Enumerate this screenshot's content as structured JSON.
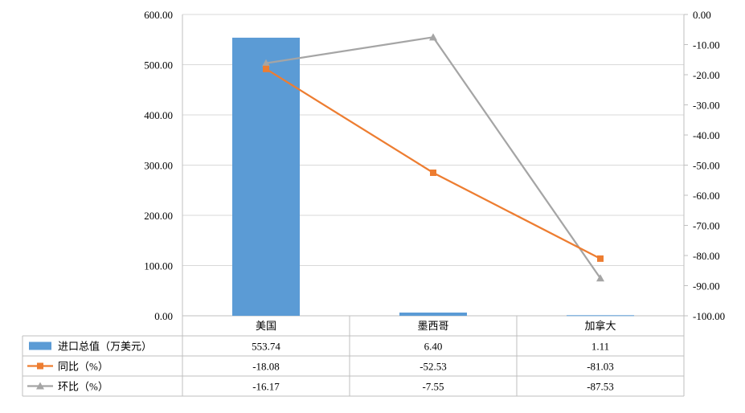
{
  "chart_data": {
    "type": "bar",
    "categories": [
      "美国",
      "墨西哥",
      "加拿大"
    ],
    "series": [
      {
        "name": "进口总值（万美元）",
        "type": "bar",
        "axis": "left",
        "color": "#5B9BD5",
        "values": [
          553.74,
          6.4,
          1.11
        ],
        "labels": [
          "553.74",
          "6.40",
          "1.11"
        ]
      },
      {
        "name": "同比（%）",
        "type": "line",
        "axis": "right",
        "color": "#ED7D31",
        "marker": "square",
        "values": [
          -18.08,
          -52.53,
          -81.03
        ],
        "labels": [
          "-18.08",
          "-52.53",
          "-81.03"
        ]
      },
      {
        "name": "环比（%）",
        "type": "line",
        "axis": "right",
        "color": "#A5A5A5",
        "marker": "triangle",
        "values": [
          -16.17,
          -7.55,
          -87.53
        ],
        "labels": [
          "-16.17",
          "-7.55",
          "-87.53"
        ]
      }
    ],
    "y_left": {
      "min": 0,
      "max": 600,
      "step": 100,
      "ticks": [
        "0.00",
        "100.00",
        "200.00",
        "300.00",
        "400.00",
        "500.00",
        "600.00"
      ]
    },
    "y_right": {
      "min": -100,
      "max": 0,
      "step": 10,
      "ticks": [
        "-100.00",
        "-90.00",
        "-80.00",
        "-70.00",
        "-60.00",
        "-50.00",
        "-40.00",
        "-30.00",
        "-20.00",
        "-10.00",
        "0.00"
      ]
    },
    "grid": true,
    "legend": "data-table-below"
  }
}
